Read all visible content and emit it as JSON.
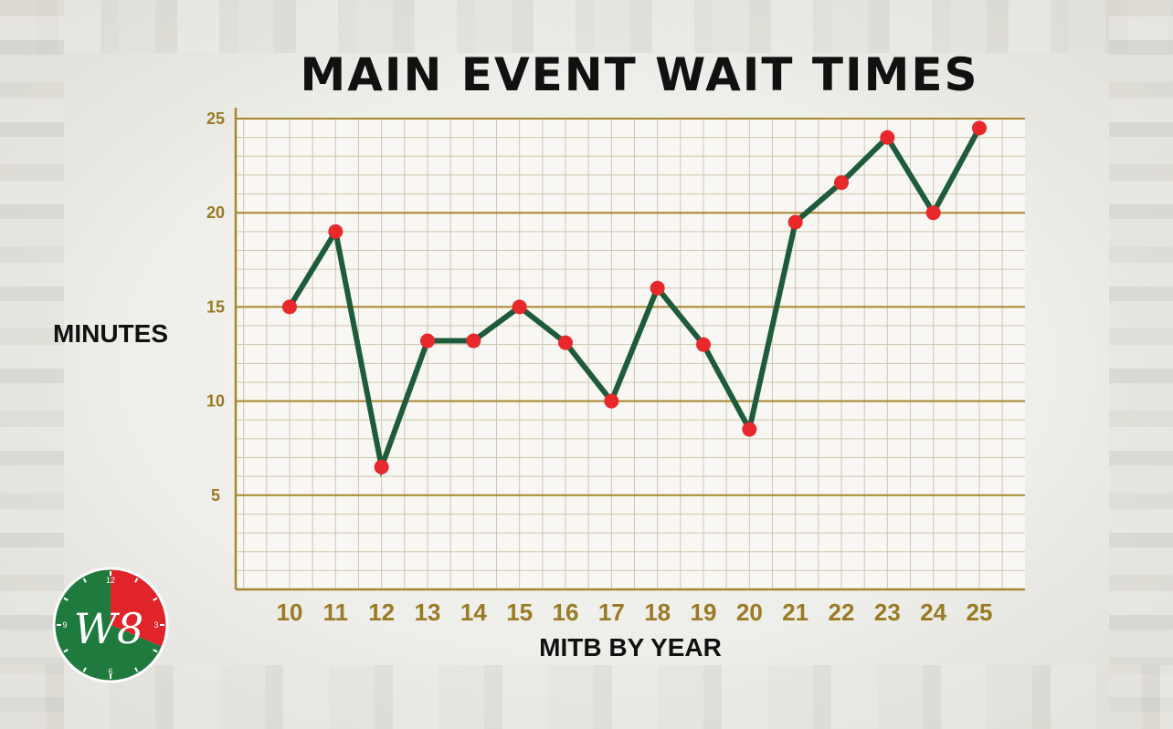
{
  "title": "MAIN EVENT WAIT TIMES",
  "colors": {
    "line": "#1e5b3a",
    "marker": "#e8282b",
    "grid_major": "#a8862e",
    "grid_minor": "#cfc7b0",
    "tick": "#9a7a22",
    "plot_bg": "#f8f7f3",
    "logo_green": "#1f7a3e",
    "logo_red": "#e1242a"
  },
  "logo": {
    "text": "W8",
    "dial_numbers": [
      "12",
      "3",
      "6",
      "9"
    ],
    "icon": "clock-icon"
  },
  "chart_data": {
    "type": "line",
    "title": "MAIN EVENT WAIT TIMES",
    "xlabel": "MITB BY YEAR",
    "ylabel": "MINUTES",
    "x": [
      "10",
      "11",
      "12",
      "13",
      "14",
      "15",
      "16",
      "17",
      "18",
      "19",
      "20",
      "21",
      "22",
      "23",
      "24",
      "25"
    ],
    "series": [
      {
        "values": [
          15,
          19,
          6.5,
          13.2,
          13.2,
          15,
          13.1,
          10,
          16,
          13,
          8.5,
          19.5,
          21.6,
          24,
          20,
          24.5
        ]
      }
    ],
    "ylim": [
      0,
      25
    ],
    "yticks": [
      5,
      10,
      15,
      20,
      25
    ],
    "grid": true,
    "legend": "none"
  }
}
